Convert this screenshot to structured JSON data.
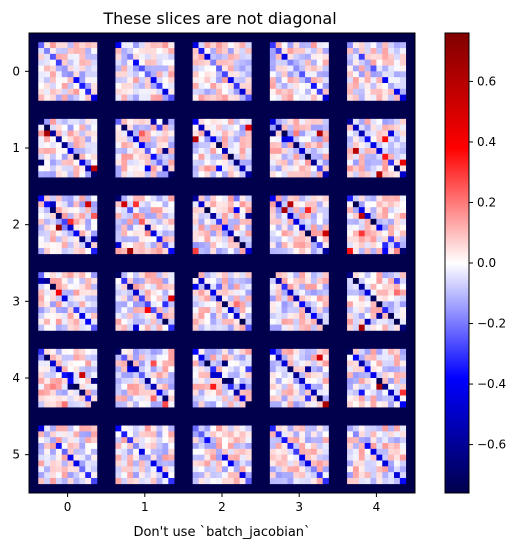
{
  "chart_data": {
    "type": "heatmap",
    "title": "These slices are not diagonal",
    "xlabel": "Don't use `batch_jacobian`",
    "ylabel": "",
    "x_ticks": [
      "0",
      "1",
      "2",
      "3",
      "4"
    ],
    "y_ticks": [
      "0",
      "1",
      "2",
      "3",
      "4",
      "5"
    ],
    "grid_rows": 6,
    "grid_cols": 5,
    "tile_size": 10,
    "colormap": "seismic",
    "vmin": -0.76,
    "vmax": 0.76,
    "colorbar_ticks": [
      0.6,
      0.4,
      0.2,
      0.0,
      -0.2,
      -0.4,
      -0.6
    ],
    "colorbar_labels": [
      "0.6",
      "0.4",
      "0.2",
      "0.0",
      "−0.2",
      "−0.4",
      "−0.6"
    ],
    "background_value": -0.76,
    "grid": false,
    "colorbar_position": "right"
  }
}
